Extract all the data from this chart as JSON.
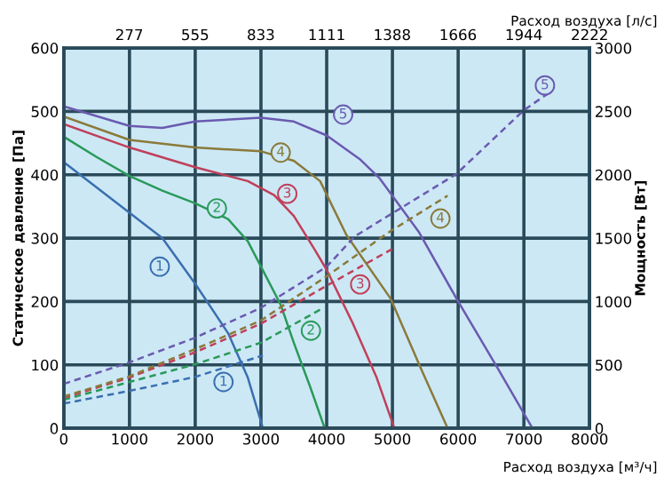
{
  "chart_data": {
    "type": "line",
    "xlabel": "Расход воздуха [м³/ч]",
    "ylabel": "Статическое давление [Па]",
    "y2label": "Мощность [Вт]",
    "x2label": "Расход воздуха [л/с]",
    "xlim": [
      0,
      8000
    ],
    "xticks": [
      0,
      1000,
      2000,
      3000,
      4000,
      5000,
      6000,
      7000,
      8000
    ],
    "ylim": [
      0,
      600
    ],
    "yticks": [
      0,
      100,
      200,
      300,
      400,
      500,
      600
    ],
    "y2lim": [
      0,
      3000
    ],
    "y2ticks": [
      0,
      500,
      1000,
      1500,
      2000,
      2500,
      3000
    ],
    "x2lim": [
      0,
      2222
    ],
    "x2ticks": [
      277,
      555,
      833,
      1111,
      1388,
      1666,
      1944,
      2222
    ],
    "grid": true,
    "legend": false,
    "marker": "none",
    "series": [
      {
        "color": "#3a6fb0",
        "line_style": "solid",
        "x": [
          0,
          500,
          1000,
          1500,
          2000,
          2500,
          2800,
          3030
        ],
        "values": [
          420,
          380,
          340,
          300,
          228,
          150,
          80,
          0
        ]
      },
      {
        "color": "#2a9a5a",
        "line_style": "solid",
        "x": [
          0,
          500,
          1000,
          1500,
          2000,
          2500,
          2800,
          3000,
          3300,
          3500,
          3750,
          3970
        ],
        "values": [
          460,
          428,
          398,
          375,
          355,
          330,
          295,
          255,
          195,
          135,
          65,
          0
        ]
      },
      {
        "color": "#c0405a",
        "line_style": "solid",
        "x": [
          0,
          1000,
          2000,
          2800,
          3200,
          3500,
          3800,
          4000,
          4400,
          4760,
          5030
        ],
        "values": [
          480,
          443,
          412,
          390,
          368,
          335,
          285,
          250,
          165,
          80,
          0
        ]
      },
      {
        "color": "#8a7a3a",
        "line_style": "solid",
        "x": [
          0,
          1000,
          2000,
          3000,
          3500,
          3900,
          4300,
          4970,
          5430,
          5840
        ],
        "values": [
          492,
          455,
          443,
          437,
          422,
          390,
          305,
          205,
          95,
          0
        ]
      },
      {
        "color": "#6a5ab0",
        "line_style": "solid",
        "x": [
          0,
          1000,
          1500,
          2000,
          3000,
          3500,
          4000,
          4500,
          4800,
          5400,
          6000,
          6600,
          7130
        ],
        "values": [
          508,
          477,
          474,
          484,
          490,
          484,
          462,
          425,
          395,
          310,
          200,
          95,
          0
        ]
      },
      {
        "color": "#3a6fb0",
        "line_style": "dashed",
        "axis": "y2",
        "x": [
          0,
          1000,
          2000,
          3030
        ],
        "values": [
          195,
          295,
          405,
          575
        ]
      },
      {
        "color": "#2a9a5a",
        "line_style": "dashed",
        "axis": "y2",
        "x": [
          0,
          1000,
          2000,
          3000,
          3950
        ],
        "values": [
          225,
          365,
          505,
          675,
          950
        ]
      },
      {
        "color": "#c0405a",
        "line_style": "dashed",
        "axis": "y2",
        "x": [
          0,
          1000,
          2000,
          3000,
          4000,
          5050
        ],
        "values": [
          240,
          400,
          600,
          825,
          1125,
          1430
        ]
      },
      {
        "color": "#8a7a3a",
        "line_style": "dashed",
        "axis": "y2",
        "x": [
          0,
          1000,
          2000,
          3000,
          4000,
          4970,
          5840
        ],
        "values": [
          250,
          410,
          625,
          850,
          1200,
          1555,
          1835
        ]
      },
      {
        "color": "#6a5ab0",
        "line_style": "dashed",
        "axis": "y2",
        "x": [
          0,
          1000,
          2000,
          3000,
          4000,
          4430,
          5970,
          7000,
          7350
        ],
        "values": [
          350,
          520,
          715,
          950,
          1275,
          1515,
          2005,
          2510,
          2635
        ]
      }
    ],
    "annotations": [
      {
        "text": "1",
        "x": 1460,
        "y": 255
      },
      {
        "text": "2",
        "x": 2330,
        "y": 347
      },
      {
        "text": "3",
        "x": 3400,
        "y": 370
      },
      {
        "text": "4",
        "x": 3300,
        "y": 435
      },
      {
        "text": "5",
        "x": 4250,
        "y": 495
      },
      {
        "text": "1",
        "x": 2430,
        "y": 73
      },
      {
        "text": "2",
        "x": 3760,
        "y": 154
      },
      {
        "text": "3",
        "x": 4510,
        "y": 227
      },
      {
        "text": "4",
        "x": 5730,
        "y": 331
      },
      {
        "text": "5",
        "x": 7320,
        "y": 541
      }
    ]
  }
}
